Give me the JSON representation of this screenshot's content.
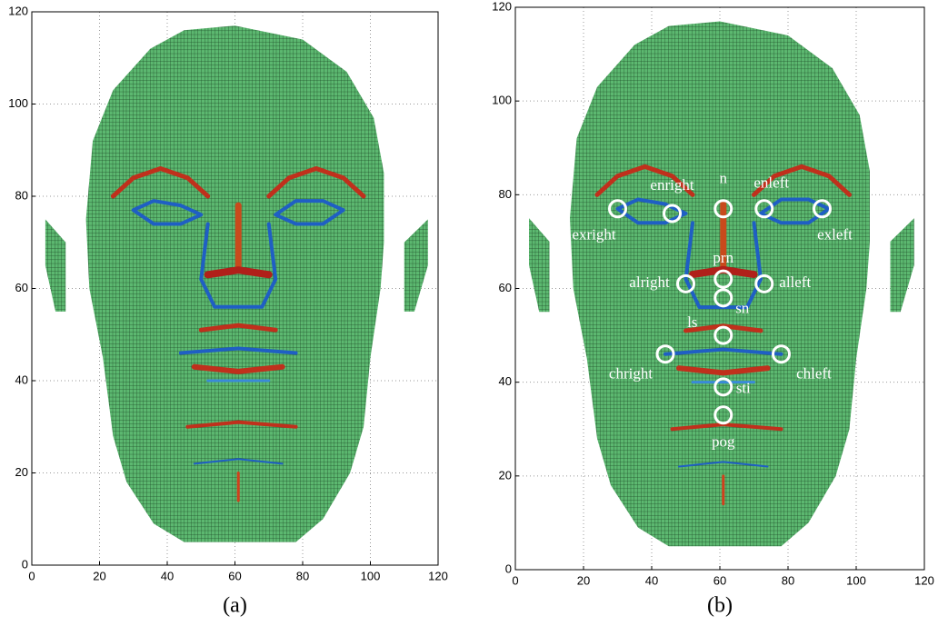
{
  "chart_data": [
    {
      "type": "image",
      "caption": "(a)",
      "xlim": [
        0,
        120
      ],
      "ylim": [
        0,
        120
      ],
      "xticks": [
        0,
        20,
        40,
        60,
        80,
        100,
        120
      ],
      "yticks": [
        0,
        20,
        40,
        60,
        80,
        100,
        120
      ],
      "grid": true
    },
    {
      "type": "scatter",
      "caption": "(b)",
      "xlim": [
        0,
        120
      ],
      "ylim": [
        0,
        120
      ],
      "xticks": [
        0,
        20,
        40,
        60,
        80,
        100,
        120
      ],
      "yticks": [
        0,
        20,
        40,
        60,
        80,
        100,
        120
      ],
      "grid": true,
      "points": [
        {
          "label": "exright",
          "x": 30,
          "y": 77
        },
        {
          "label": "enright",
          "x": 46,
          "y": 76
        },
        {
          "label": "n",
          "x": 61,
          "y": 77
        },
        {
          "label": "enleft",
          "x": 73,
          "y": 77
        },
        {
          "label": "exleft",
          "x": 90,
          "y": 77
        },
        {
          "label": "prn",
          "x": 61,
          "y": 62
        },
        {
          "label": "alright",
          "x": 50,
          "y": 61
        },
        {
          "label": "alleft",
          "x": 73,
          "y": 61
        },
        {
          "label": "sn",
          "x": 61,
          "y": 58
        },
        {
          "label": "ls",
          "x": 61,
          "y": 50
        },
        {
          "label": "chright",
          "x": 44,
          "y": 46
        },
        {
          "label": "chleft",
          "x": 78,
          "y": 46
        },
        {
          "label": "sti",
          "x": 61,
          "y": 39
        },
        {
          "label": "pog",
          "x": 61,
          "y": 33
        }
      ]
    }
  ]
}
